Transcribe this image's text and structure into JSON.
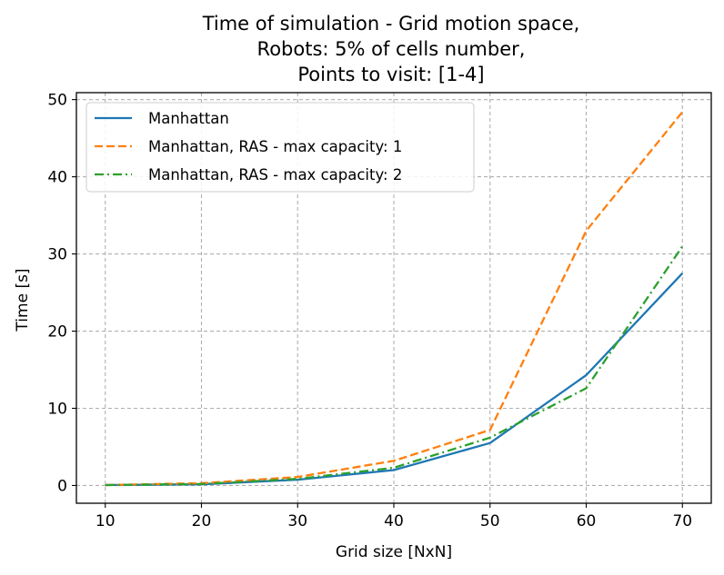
{
  "chart_data": {
    "type": "line",
    "title_lines": [
      "Time of simulation - Grid motion space,",
      "Robots: 5% of cells number,",
      "Points to visit: [1-4]"
    ],
    "xlabel": "Grid size [NxN]",
    "ylabel": "Time [s]",
    "x": [
      10,
      20,
      30,
      40,
      50,
      60,
      70
    ],
    "xticks": [
      10,
      20,
      30,
      40,
      50,
      60,
      70
    ],
    "yticks": [
      0,
      10,
      20,
      30,
      40,
      50
    ],
    "xlim": [
      7,
      73
    ],
    "ylim": [
      -2.3,
      50.9
    ],
    "grid": true,
    "legend_position": "upper-left",
    "series": [
      {
        "name": "Manhattan",
        "color": "#1f77b4",
        "dash": "solid",
        "values": [
          0.05,
          0.15,
          0.75,
          2.0,
          5.5,
          14.3,
          27.5
        ]
      },
      {
        "name": "Manhattan, RAS - max capacity: 1",
        "color": "#ff7f0e",
        "dash": "dashed",
        "values": [
          0.05,
          0.3,
          1.1,
          3.2,
          7.2,
          33.0,
          48.4
        ]
      },
      {
        "name": "Manhattan, RAS - max capacity: 2",
        "color": "#2ca02c",
        "dash": "dashdot",
        "values": [
          0.05,
          0.2,
          0.85,
          2.3,
          6.2,
          12.6,
          31.0
        ]
      }
    ]
  }
}
